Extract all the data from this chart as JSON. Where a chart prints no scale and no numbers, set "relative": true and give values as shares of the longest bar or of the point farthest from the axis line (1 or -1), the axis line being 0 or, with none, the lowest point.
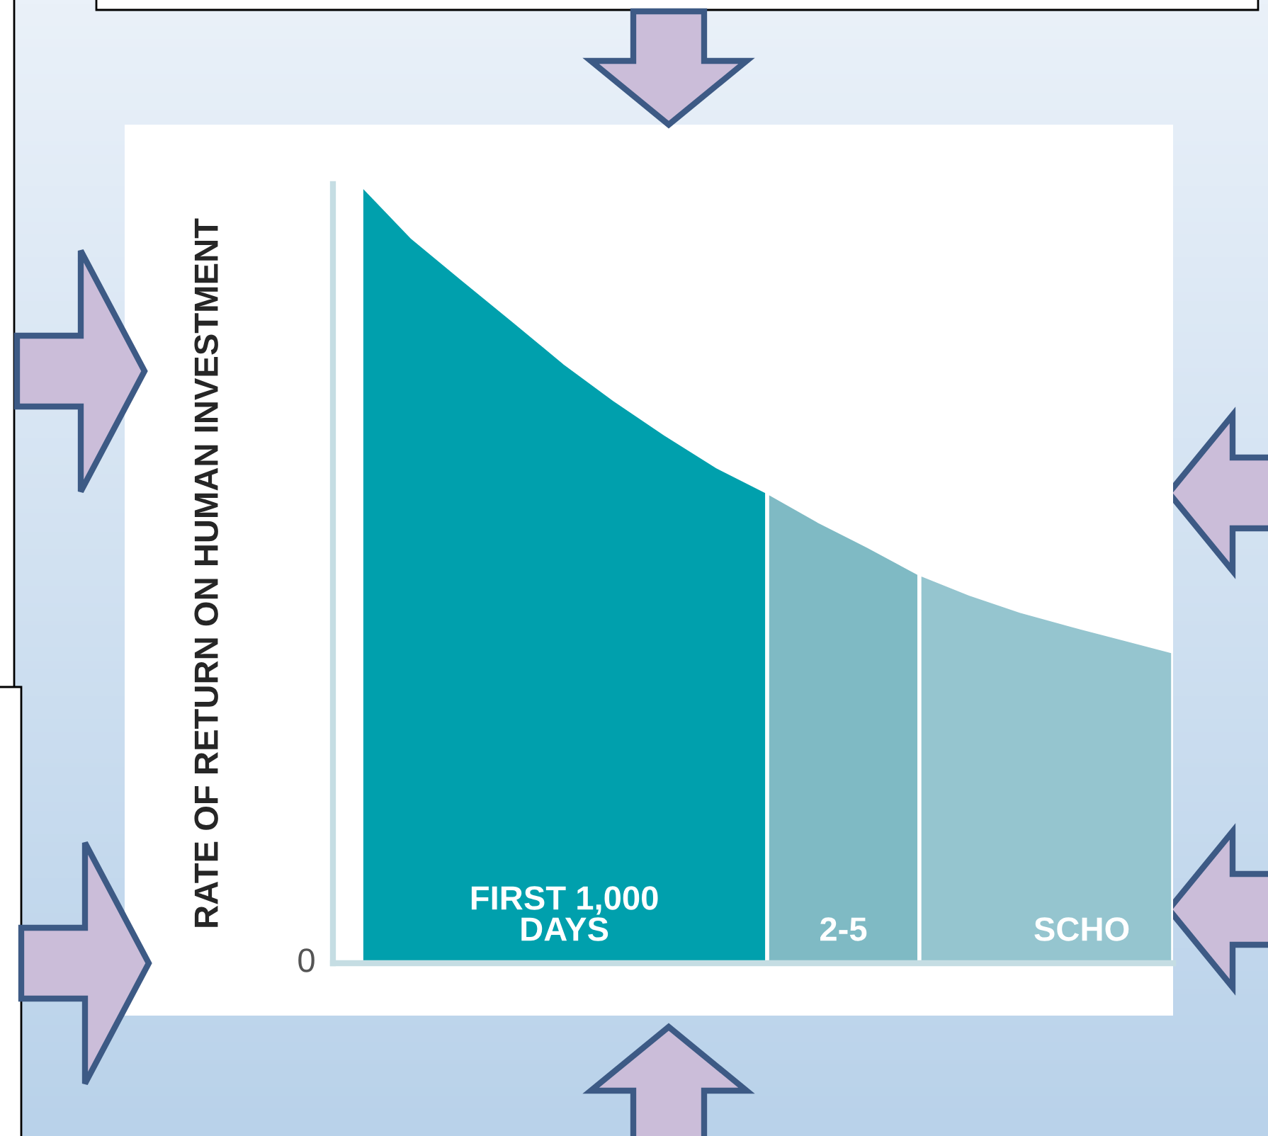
{
  "chart_data": {
    "type": "area",
    "relative": true,
    "ylabel": "RATE OF RETURN ON HUMAN INVESTMENT",
    "categories": [
      null,
      null,
      null,
      null,
      null,
      null,
      null,
      null,
      null,
      null,
      null,
      null,
      null,
      null,
      null,
      null,
      null
    ],
    "series": [
      {
        "color": "#00a0ad",
        "values": [
          1.0,
          0.932,
          0.878,
          0.825,
          0.771,
          0.723,
          0.679,
          0.638,
          0.605,
          null,
          null,
          null,
          null,
          null,
          null,
          null,
          null
        ]
      },
      {
        "color": "#7fbac4",
        "values": [
          null,
          null,
          null,
          null,
          null,
          null,
          null,
          null,
          0.605,
          0.568,
          0.535,
          0.5,
          null,
          null,
          null,
          null,
          null
        ]
      },
      {
        "color": "#95c5cf",
        "values": [
          null,
          null,
          null,
          null,
          null,
          null,
          null,
          null,
          null,
          null,
          null,
          0.5,
          0.474,
          0.452,
          0.434,
          0.417,
          0.4
        ]
      }
    ],
    "annotations": [
      "FIRST 1,000\nDAYS",
      "2-5",
      "SCHO",
      "0"
    ],
    "grid": false,
    "legend": false
  }
}
